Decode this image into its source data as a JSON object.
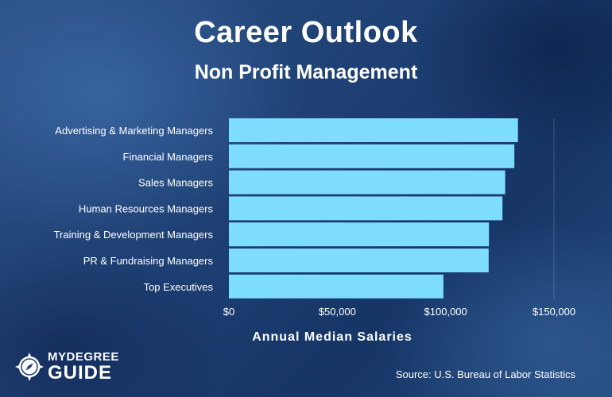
{
  "title": "Career Outlook",
  "subtitle": "Non Profit Management",
  "source_note": "Source: U.S. Bureau of Labor Statistics",
  "logo": {
    "line1": "MYDEGREE",
    "line2": "GUIDE",
    "icon": "compass-icon"
  },
  "colors": {
    "bar": "#7edcfd",
    "text": "#ffffff"
  },
  "chart_data": {
    "type": "bar",
    "orientation": "horizontal",
    "categories": [
      "Advertising & Marketing Managers",
      "Financial Managers",
      "Sales Managers",
      "Human Resources Managers",
      "Training & Development Managers",
      "PR & Fundraising Managers",
      "Top Executives"
    ],
    "values": [
      133380,
      131710,
      127490,
      126230,
      120000,
      119860,
      98980
    ],
    "xlabel": "Annual Median Salaries",
    "xlim": [
      0,
      150000
    ],
    "ticks": [
      0,
      50000,
      100000,
      150000
    ],
    "tick_labels": [
      "$0",
      "$50,000",
      "$100,000",
      "$150,000"
    ],
    "grid": false
  }
}
